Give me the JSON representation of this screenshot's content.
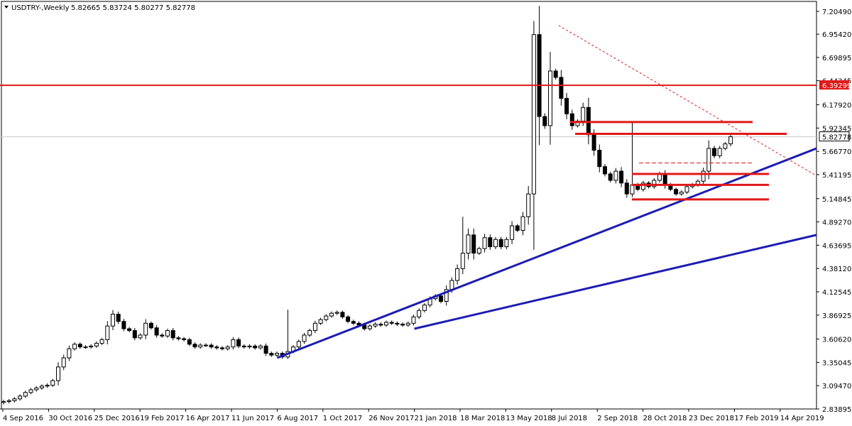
{
  "header": {
    "symbol": "USDTRY-,Weekly",
    "ohlc": "5.82665 5.83724 5.80277 5.82778"
  },
  "colors": {
    "background": "#ffffff",
    "candle_up_fill": "#ffffff",
    "candle_down_fill": "#000000",
    "candle_outline": "#000000",
    "support_lines": "#1c1cb4",
    "resistance_lines": "#e01818",
    "current_price_line": "#c8c8c8",
    "current_price_label_bg": "#ffffff",
    "level_label_bg": "#e01818"
  },
  "chart_data": {
    "type": "candlestick",
    "title": "USDTRY-,Weekly",
    "y_ticks": [
      "7.20490",
      "6.95420",
      "6.69895",
      "6.44345",
      "6.17920",
      "5.92345",
      "5.66770",
      "5.41195",
      "5.14845",
      "4.89270",
      "4.63695",
      "4.38120",
      "4.12545",
      "3.86925",
      "3.60620",
      "3.35045",
      "3.09470",
      "2.83895"
    ],
    "ylim": [
      2.83895,
      7.2049
    ],
    "x_ticks": [
      "4 Sep 2016",
      "30 Oct 2016",
      "25 Dec 2016",
      "19 Feb 2017",
      "16 Apr 2017",
      "11 Jun 2017",
      "6 Aug 2017",
      "1 Oct 2017",
      "26 Nov 2017",
      "21 Jan 2018",
      "18 Mar 2018",
      "13 May 2018",
      "8 Jul 2018",
      "2 Sep 2018",
      "28 Oct 2018",
      "23 Dec 2018",
      "17 Feb 2019",
      "14 Apr 2019"
    ],
    "current_price": 5.82778,
    "current_price_label": "5.82778",
    "level_6_39299_label": "6.39299",
    "closes": [
      2.92,
      2.93,
      2.95,
      2.98,
      3.02,
      3.05,
      3.07,
      3.09,
      3.1,
      3.15,
      3.3,
      3.4,
      3.5,
      3.55,
      3.52,
      3.52,
      3.53,
      3.56,
      3.6,
      3.75,
      3.88,
      3.8,
      3.72,
      3.7,
      3.62,
      3.65,
      3.78,
      3.73,
      3.65,
      3.64,
      3.7,
      3.62,
      3.61,
      3.6,
      3.55,
      3.52,
      3.54,
      3.54,
      3.52,
      3.51,
      3.5,
      3.52,
      3.6,
      3.53,
      3.52,
      3.53,
      3.51,
      3.53,
      3.45,
      3.43,
      3.45,
      3.41,
      3.47,
      3.52,
      3.58,
      3.65,
      3.7,
      3.78,
      3.82,
      3.86,
      3.89,
      3.9,
      3.85,
      3.8,
      3.78,
      3.76,
      3.72,
      3.75,
      3.77,
      3.76,
      3.79,
      3.78,
      3.77,
      3.76,
      3.78,
      3.85,
      3.92,
      3.98,
      4.05,
      4.08,
      4.02,
      4.15,
      4.25,
      4.38,
      4.55,
      4.75,
      4.55,
      4.6,
      4.72,
      4.62,
      4.7,
      4.62,
      4.7,
      4.85,
      4.8,
      4.95,
      5.2,
      6.95,
      6.05,
      5.95,
      6.55,
      6.48,
      6.25,
      6.08,
      5.95,
      6.0,
      6.15,
      5.85,
      5.68,
      5.5,
      5.42,
      5.35,
      5.45,
      5.32,
      5.2,
      5.3,
      5.25,
      5.32,
      5.28,
      5.35,
      5.42,
      5.3,
      5.25,
      5.2,
      5.22,
      5.28,
      5.3,
      5.34,
      5.45,
      5.7,
      5.62,
      5.7,
      5.75,
      5.82778
    ],
    "support_lines": [
      {
        "from": [
          "6 Aug 2017",
          3.4
        ],
        "to": [
          "14 Apr 2019",
          5.7
        ]
      },
      {
        "from": [
          "21 Jan 2018",
          3.72
        ],
        "to": [
          "14 Apr 2019",
          4.75
        ]
      }
    ],
    "resistance_levels": [
      6.39299,
      5.99,
      5.86,
      5.42,
      5.3,
      5.14
    ],
    "dashed_trendline": {
      "from": [
        "8 Jul 2018",
        7.05
      ],
      "to": [
        "14 Apr 2019",
        5.4
      ]
    }
  }
}
